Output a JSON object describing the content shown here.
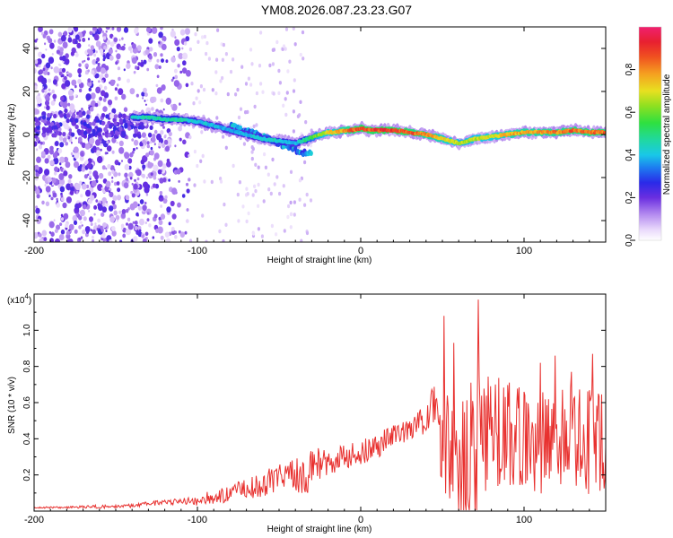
{
  "title": "YM08.2026.087.23.23.G07",
  "chart_data": [
    {
      "type": "heatmap",
      "id": "spectrogram",
      "xlabel": "Height of straight line (km)",
      "ylabel": "Frequency (Hz)",
      "xlim": [
        -200,
        150
      ],
      "ylim": [
        -50,
        50
      ],
      "x_ticks": [
        -200,
        -100,
        0,
        100
      ],
      "x_tick_labels": [
        "-200",
        "-100",
        "0",
        "100"
      ],
      "y_ticks": [
        -40,
        -20,
        0,
        20,
        40
      ],
      "y_tick_labels": [
        "-40",
        "-20",
        "0",
        "20",
        "40"
      ],
      "colorbar": {
        "label": "Normalized spectral amplitude",
        "range": [
          0,
          1
        ],
        "ticks": [
          0.0,
          0.2,
          0.4,
          0.6,
          0.8
        ],
        "tick_labels": [
          "0.0",
          "0.2",
          "0.4",
          "0.6",
          "0.8"
        ]
      },
      "ridge": {
        "x": [
          -140,
          -130,
          -120,
          -110,
          -100,
          -90,
          -80,
          -70,
          -60,
          -50,
          -40,
          -32,
          -25,
          -20,
          -15,
          -10,
          -5,
          0,
          5,
          10,
          20,
          30,
          40,
          50,
          55,
          60,
          70,
          80,
          90,
          100,
          110,
          120,
          130,
          140,
          150
        ],
        "freq": [
          8,
          8,
          7,
          7,
          6,
          4,
          2,
          0,
          -2,
          -3,
          -4,
          -2,
          0,
          1,
          1,
          2,
          2,
          3,
          2,
          2,
          2,
          1,
          0,
          -2,
          -3,
          -4,
          -2,
          -1,
          0,
          1,
          1,
          1,
          2,
          1,
          1
        ],
        "amplitude": [
          0.45,
          0.5,
          0.5,
          0.48,
          0.45,
          0.42,
          0.4,
          0.42,
          0.45,
          0.48,
          0.4,
          0.55,
          0.7,
          0.75,
          0.8,
          0.85,
          0.9,
          0.95,
          0.95,
          0.95,
          0.95,
          0.92,
          0.85,
          0.8,
          0.75,
          0.7,
          0.72,
          0.75,
          0.8,
          0.85,
          0.85,
          0.88,
          0.9,
          0.9,
          0.9
        ]
      }
    },
    {
      "type": "line",
      "id": "snr",
      "xlabel": "Height of straight line (km)",
      "ylabel": "SNR (10 * v/v)",
      "y_multiplier": "(x10",
      "y_multiplier_exp": "4",
      "y_multiplier_close": ")",
      "xlim": [
        -200,
        150
      ],
      "ylim": [
        0,
        1.2
      ],
      "x_ticks": [
        -200,
        -100,
        0,
        100
      ],
      "x_tick_labels": [
        "-200",
        "-100",
        "0",
        "100"
      ],
      "y_ticks": [
        0.2,
        0.4,
        0.6,
        0.8,
        1.0
      ],
      "y_tick_labels": [
        "0.2",
        "0.4",
        "0.6",
        "0.8",
        "1.0"
      ],
      "color": "#e8312f",
      "series": [
        {
          "name": "SNR",
          "x": [
            -200,
            -180,
            -160,
            -140,
            -120,
            -110,
            -100,
            -90,
            -80,
            -70,
            -60,
            -50,
            -40,
            -30,
            -20,
            -10,
            0,
            10,
            20,
            30,
            35,
            40,
            45,
            50,
            55,
            60,
            65,
            70,
            75,
            80,
            90,
            100,
            110,
            120,
            130,
            140,
            145,
            150
          ],
          "y": [
            0.02,
            0.02,
            0.025,
            0.03,
            0.05,
            0.05,
            0.06,
            0.08,
            0.1,
            0.12,
            0.15,
            0.18,
            0.2,
            0.22,
            0.28,
            0.3,
            0.32,
            0.36,
            0.42,
            0.44,
            0.48,
            0.52,
            0.55,
            0.4,
            0.32,
            0.22,
            0.3,
            0.32,
            0.4,
            0.45,
            0.42,
            0.4,
            0.38,
            0.42,
            0.4,
            0.38,
            0.4,
            0.42
          ],
          "spread": [
            0.005,
            0.005,
            0.01,
            0.01,
            0.015,
            0.02,
            0.03,
            0.04,
            0.05,
            0.06,
            0.07,
            0.08,
            0.1,
            0.12,
            0.08,
            0.07,
            0.07,
            0.07,
            0.06,
            0.06,
            0.07,
            0.1,
            0.15,
            0.35,
            0.3,
            0.3,
            0.4,
            0.45,
            0.35,
            0.3,
            0.3,
            0.3,
            0.3,
            0.3,
            0.3,
            0.3,
            0.3,
            0.3
          ],
          "peaks": [
            {
              "x": 51,
              "y": 1.08
            },
            {
              "x": 72,
              "y": 1.17
            },
            {
              "x": 57,
              "y": 0.93
            },
            {
              "x": 110,
              "y": 0.82
            },
            {
              "x": 119,
              "y": 0.86
            },
            {
              "x": 129,
              "y": 0.77
            },
            {
              "x": 142,
              "y": 0.87
            }
          ]
        }
      ]
    }
  ]
}
